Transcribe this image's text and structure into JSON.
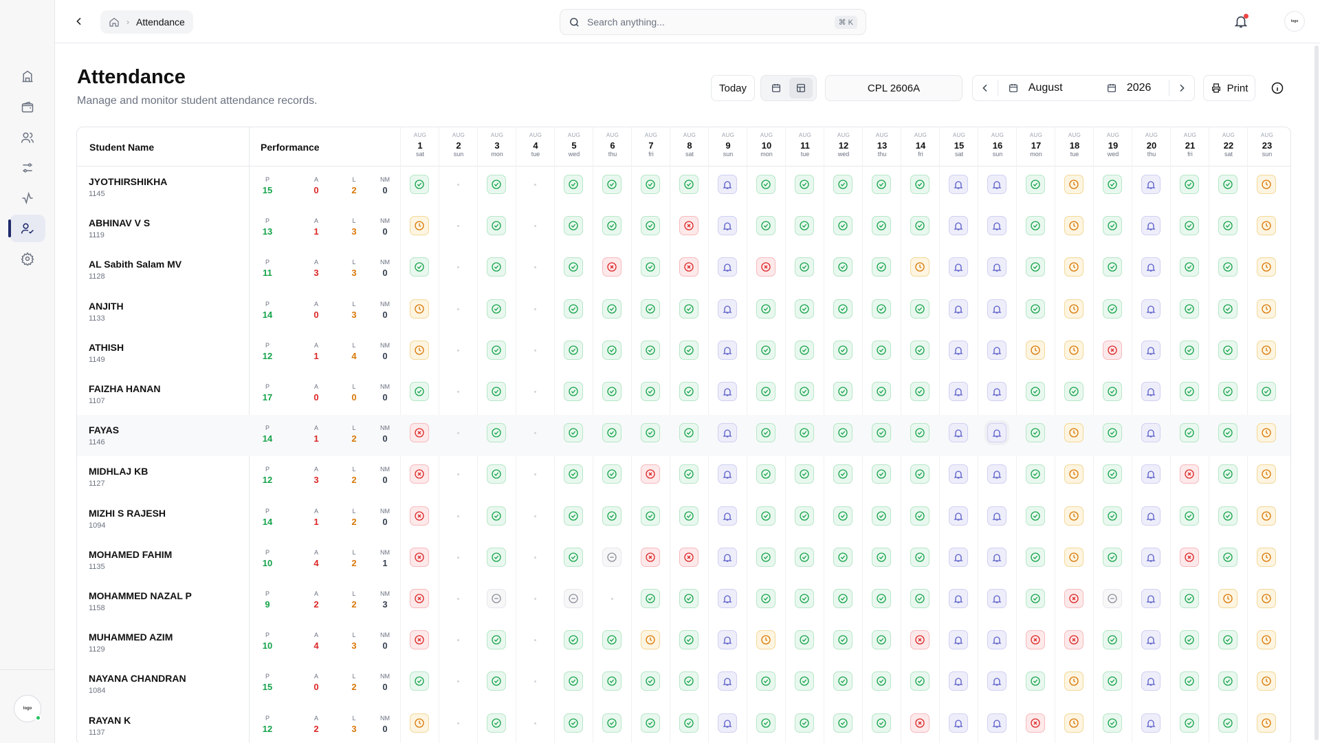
{
  "header": {
    "breadcrumb": "Attendance",
    "search_placeholder": "Search anything...",
    "shortcut": "⌘ K"
  },
  "page": {
    "title": "Attendance",
    "subtitle": "Manage and monitor student attendance records."
  },
  "toolbar": {
    "today_label": "Today",
    "batch": "CPL 2606A",
    "month": "August",
    "year": "2026",
    "print_label": "Print"
  },
  "table": {
    "col_student": "Student Name",
    "col_performance": "Performance",
    "stat_labels": [
      "P",
      "A",
      "L",
      "NM"
    ]
  },
  "days": [
    {
      "m": "AUG",
      "d": "1",
      "w": "sat"
    },
    {
      "m": "AUG",
      "d": "2",
      "w": "sun"
    },
    {
      "m": "AUG",
      "d": "3",
      "w": "mon"
    },
    {
      "m": "AUG",
      "d": "4",
      "w": "tue"
    },
    {
      "m": "AUG",
      "d": "5",
      "w": "wed"
    },
    {
      "m": "AUG",
      "d": "6",
      "w": "thu"
    },
    {
      "m": "AUG",
      "d": "7",
      "w": "fri"
    },
    {
      "m": "AUG",
      "d": "8",
      "w": "sat"
    },
    {
      "m": "AUG",
      "d": "9",
      "w": "sun"
    },
    {
      "m": "AUG",
      "d": "10",
      "w": "mon"
    },
    {
      "m": "AUG",
      "d": "11",
      "w": "tue"
    },
    {
      "m": "AUG",
      "d": "12",
      "w": "wed"
    },
    {
      "m": "AUG",
      "d": "13",
      "w": "thu"
    },
    {
      "m": "AUG",
      "d": "14",
      "w": "fri"
    },
    {
      "m": "AUG",
      "d": "15",
      "w": "sat"
    },
    {
      "m": "AUG",
      "d": "16",
      "w": "sun"
    },
    {
      "m": "AUG",
      "d": "17",
      "w": "mon"
    },
    {
      "m": "AUG",
      "d": "18",
      "w": "tue"
    },
    {
      "m": "AUG",
      "d": "19",
      "w": "wed"
    },
    {
      "m": "AUG",
      "d": "20",
      "w": "thu"
    },
    {
      "m": "AUG",
      "d": "21",
      "w": "fri"
    },
    {
      "m": "AUG",
      "d": "22",
      "w": "sat"
    },
    {
      "m": "AUG",
      "d": "23",
      "w": "sun"
    }
  ],
  "students": [
    {
      "name": "JYOTHIRSHIKHA",
      "id": "1145",
      "p": "15",
      "a": "0",
      "l": "2",
      "nm": "0",
      "att": "P-P-PPPPHPPPPPHHPLPHPPL"
    },
    {
      "name": "ABHINAV V S",
      "id": "1119",
      "p": "13",
      "a": "1",
      "l": "3",
      "nm": "0",
      "att": "L-P-PPPAHPPPPPHHPLPHPPL"
    },
    {
      "name": "AL Sabith Salam MV",
      "id": "1128",
      "p": "11",
      "a": "3",
      "l": "3",
      "nm": "0",
      "att": "P-P-PAPAHAPPPLHHPLPHPPL"
    },
    {
      "name": "ANJITH",
      "id": "1133",
      "p": "14",
      "a": "0",
      "l": "3",
      "nm": "0",
      "att": "L-P-PPPPHPPPPPHHPLPHPPL"
    },
    {
      "name": "ATHISH",
      "id": "1149",
      "p": "12",
      "a": "1",
      "l": "4",
      "nm": "0",
      "att": "L-P-PPPPHPPPPPHHLLAHPPL"
    },
    {
      "name": "FAIZHA HANAN",
      "id": "1107",
      "p": "17",
      "a": "0",
      "l": "0",
      "nm": "0",
      "att": "P-P-PPPPHPPPPPHHPPPHPPP"
    },
    {
      "name": "FAYAS",
      "id": "1146",
      "p": "14",
      "a": "1",
      "l": "2",
      "nm": "0",
      "att": "A-P-PPPPHPPPPPHHPLPHPPL"
    },
    {
      "name": "MIDHLAJ KB",
      "id": "1127",
      "p": "12",
      "a": "3",
      "l": "2",
      "nm": "0",
      "att": "A-P-PPAPHPPPPPHHPLPHAPL"
    },
    {
      "name": "MIZHI S RAJESH",
      "id": "1094",
      "p": "14",
      "a": "1",
      "l": "2",
      "nm": "0",
      "att": "A-P-PPPPHPPPPPHHPLPHPPL"
    },
    {
      "name": "MOHAMED FAHIM",
      "id": "1135",
      "p": "10",
      "a": "4",
      "l": "2",
      "nm": "1",
      "att": "A-P-PNAAHPPPPPHHPLPHAPL"
    },
    {
      "name": "MOHAMMED NAZAL P",
      "id": "1158",
      "p": "9",
      "a": "2",
      "l": "2",
      "nm": "3",
      "att": "A-N-N-PPHPPPPPHHPANHPLL"
    },
    {
      "name": "MUHAMMED AZIM",
      "id": "1129",
      "p": "10",
      "a": "4",
      "l": "3",
      "nm": "0",
      "att": "A-P-PPLPHLPPPAHHAAPHPPL"
    },
    {
      "name": "NAYANA CHANDRAN",
      "id": "1084",
      "p": "15",
      "a": "0",
      "l": "2",
      "nm": "0",
      "att": "P-P-PPPPHPPPPPHHPLPHPPL"
    },
    {
      "name": "RAYAN K",
      "id": "1137",
      "p": "12",
      "a": "2",
      "l": "3",
      "nm": "0",
      "att": "L-P-PPPPHPPPPAHHALPHPPL"
    }
  ]
}
